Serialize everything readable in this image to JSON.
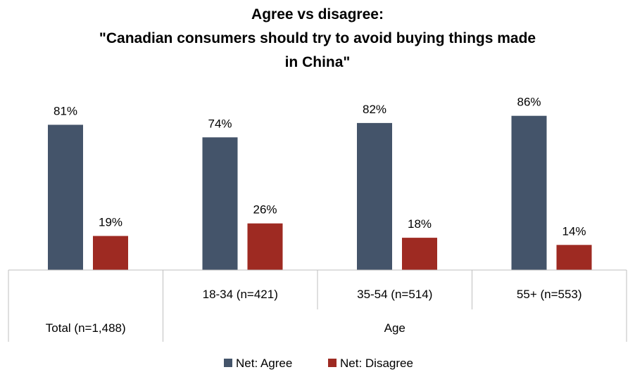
{
  "chart_data": {
    "type": "bar",
    "title_lines": [
      "Agree vs disagree:",
      "\"Canadian consumers should try to avoid buying things made",
      "in China\""
    ],
    "categories": [
      "",
      "18-34 (n=421)",
      "35-54 (n=514)",
      "55+ (n=553)"
    ],
    "groups": [
      {
        "label": "Total (n=1,488)",
        "span": [
          0,
          0
        ]
      },
      {
        "label": "Age",
        "span": [
          1,
          3
        ]
      }
    ],
    "series": [
      {
        "name": "Net: Agree",
        "color": "#44546a",
        "values": [
          81,
          74,
          82,
          86
        ],
        "labels": [
          "81%",
          "74%",
          "82%",
          "86%"
        ]
      },
      {
        "name": "Net: Disagree",
        "color": "#9e2a22",
        "values": [
          19,
          26,
          18,
          14
        ],
        "labels": [
          "19%",
          "26%",
          "18%",
          "14%"
        ]
      }
    ],
    "ylim": [
      0,
      100
    ],
    "grid": false,
    "legend": "bottom"
  }
}
